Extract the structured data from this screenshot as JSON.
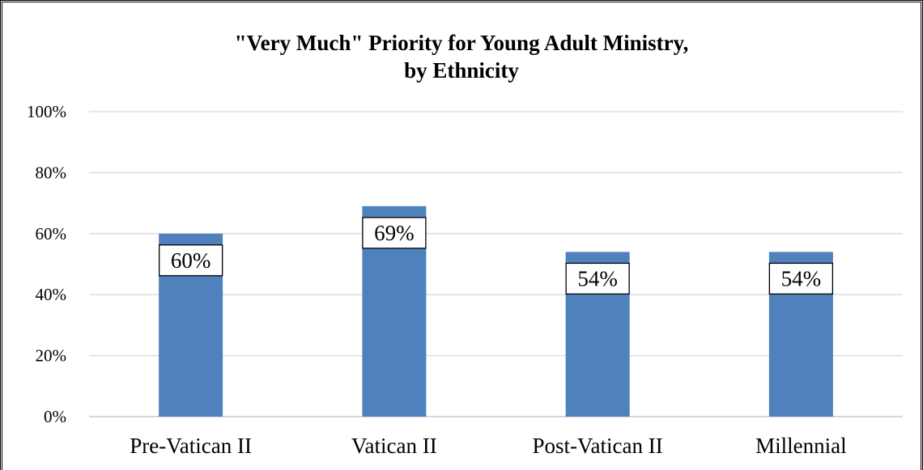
{
  "chart_data": {
    "type": "bar",
    "title_lines": [
      "\"Very Much\" Priority for Young Adult Ministry,",
      "by Ethnicity"
    ],
    "categories": [
      "Pre-Vatican II",
      "Vatican II",
      "Post-Vatican II",
      "Millennial"
    ],
    "values": [
      60,
      69,
      54,
      54
    ],
    "data_labels": [
      "60%",
      "69%",
      "54%",
      "54%"
    ],
    "y_ticks": [
      "0%",
      "20%",
      "40%",
      "60%",
      "80%",
      "100%"
    ],
    "ylim": [
      0,
      100
    ],
    "grid": true,
    "bar_color": "#4f81bd"
  }
}
